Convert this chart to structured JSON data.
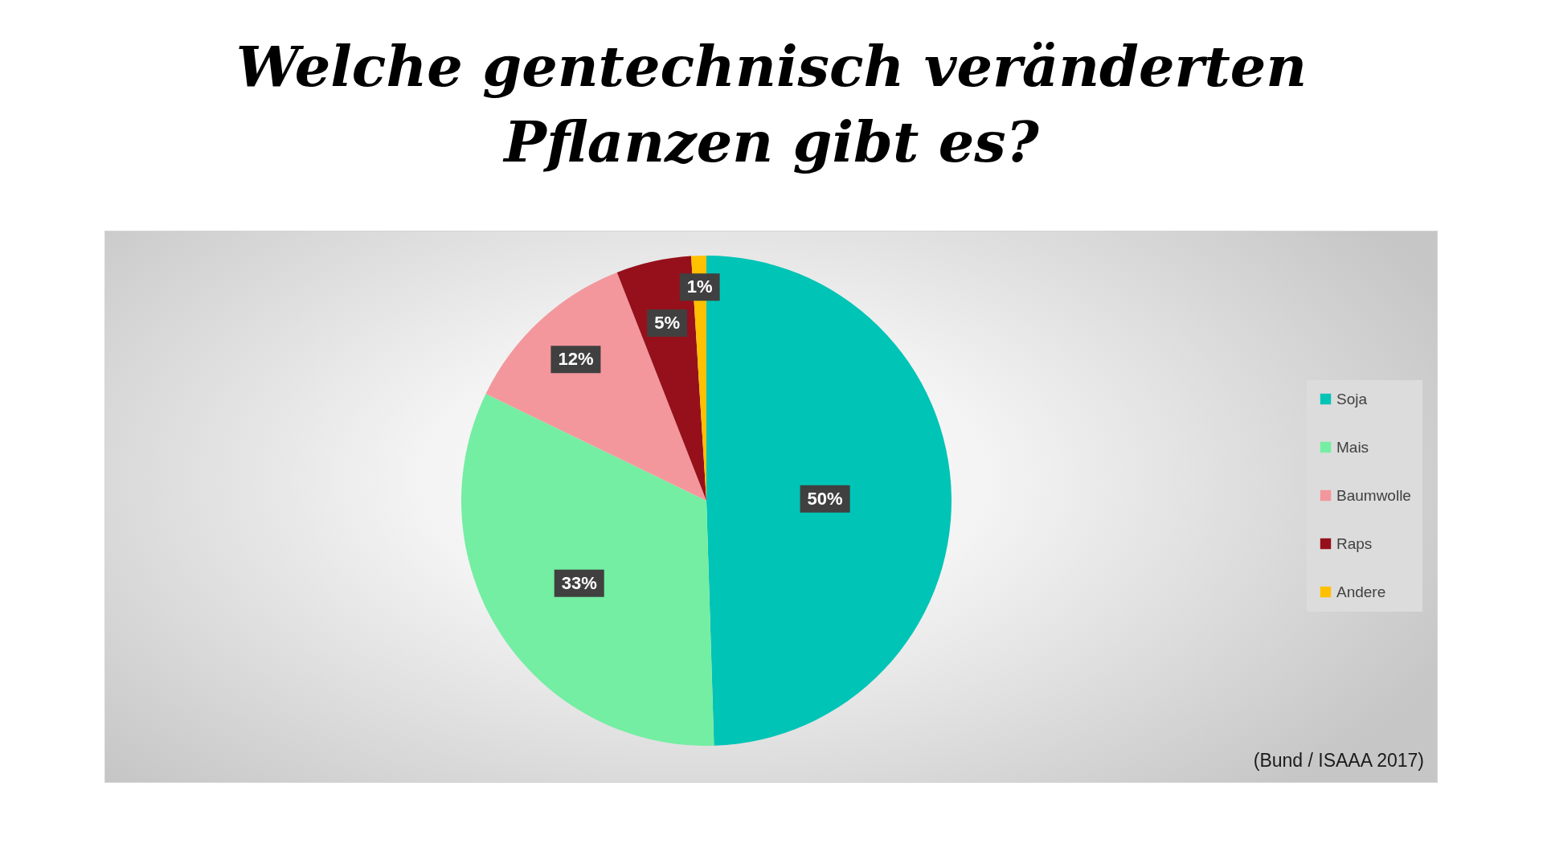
{
  "chart_data": {
    "type": "pie",
    "title": "Welche gentechnisch veränderten Pflanzen gibt es?",
    "categories": [
      "Soja",
      "Mais",
      "Baumwolle",
      "Raps",
      "Andere"
    ],
    "values": [
      50,
      33,
      12,
      5,
      1
    ],
    "colors": [
      "#00c4b6",
      "#74eea2",
      "#f3979c",
      "#96101b",
      "#ffc000"
    ],
    "value_labels": [
      "50%",
      "33%",
      "12%",
      "5%",
      "1%"
    ],
    "legend": "right",
    "annotations": [
      "(Bund / ISAAA 2017)"
    ]
  }
}
